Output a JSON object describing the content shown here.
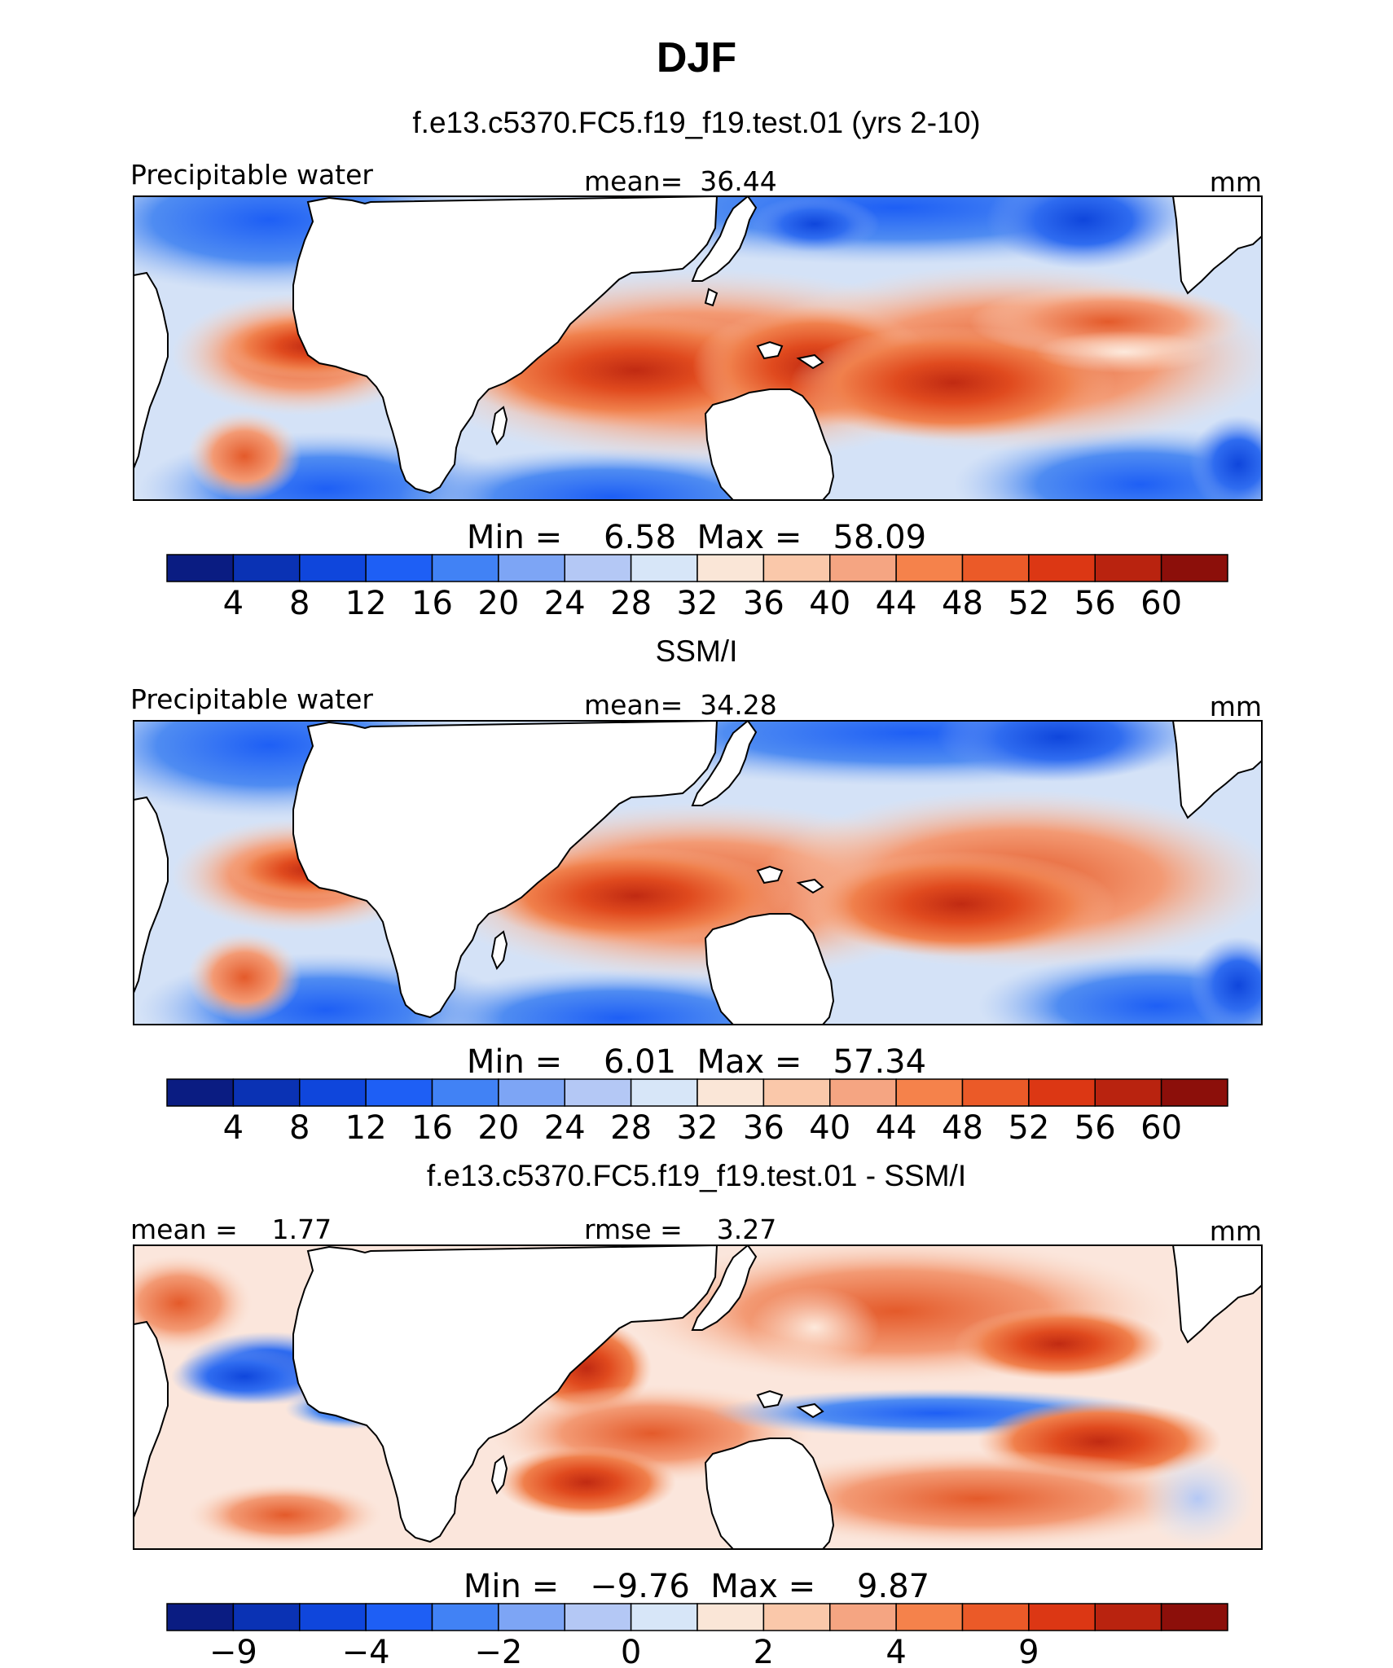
{
  "figure": {
    "title": "DJF"
  },
  "panels": [
    {
      "title": "f.e13.c5370.FC5.f19_f19.test.01 (yrs 2-10)",
      "left_label": "Precipitable water",
      "center_label": "mean=  36.44",
      "right_label": "mm",
      "minmax_label": "Min =    6.58  Max =   58.09",
      "colorbar": {
        "colors": [
          "#0a1c82",
          "#0a32b4",
          "#0f46dc",
          "#1e5ff5",
          "#4182f5",
          "#7da5f5",
          "#b4c8f5",
          "#d7e6f8",
          "#fae6d7",
          "#fac8aa",
          "#f5a582",
          "#f5824b",
          "#eb5a28",
          "#dc3714",
          "#b9230f",
          "#8c0f0a"
        ],
        "tick_labels": [
          "4",
          "8",
          "12",
          "16",
          "20",
          "24",
          "28",
          "32",
          "36",
          "40",
          "44",
          "48",
          "52",
          "56",
          "60"
        ]
      }
    },
    {
      "title": "SSM/I",
      "left_label": "Precipitable water",
      "center_label": "mean=  34.28",
      "right_label": "mm",
      "minmax_label": "Min =    6.01  Max =   57.34",
      "colorbar": {
        "colors": [
          "#0a1c82",
          "#0a32b4",
          "#0f46dc",
          "#1e5ff5",
          "#4182f5",
          "#7da5f5",
          "#b4c8f5",
          "#d7e6f8",
          "#fae6d7",
          "#fac8aa",
          "#f5a582",
          "#f5824b",
          "#eb5a28",
          "#dc3714",
          "#b9230f",
          "#8c0f0a"
        ],
        "tick_labels": [
          "4",
          "8",
          "12",
          "16",
          "20",
          "24",
          "28",
          "32",
          "36",
          "40",
          "44",
          "48",
          "52",
          "56",
          "60"
        ]
      }
    },
    {
      "title": "f.e13.c5370.FC5.f19_f19.test.01 - SSM/I",
      "left_label": "mean =    1.77",
      "center_label": "rmse =    3.27",
      "right_label": "mm",
      "minmax_label": "Min =   −9.76  Max =    9.87",
      "colorbar": {
        "colors": [
          "#0a1c82",
          "#0a32b4",
          "#0f46dc",
          "#1e5ff5",
          "#4182f5",
          "#7da5f5",
          "#b4c8f5",
          "#d7e6f8",
          "#fae6d7",
          "#fac8aa",
          "#f5a582",
          "#f5824b",
          "#eb5a28",
          "#dc3714",
          "#b9230f",
          "#8c0f0a"
        ],
        "tick_labels": [
          "−9",
          "",
          "−4",
          "",
          "−2",
          "",
          "0",
          "",
          "2",
          "",
          "4",
          "",
          "9",
          "",
          ""
        ]
      }
    }
  ],
  "chart_data": [
    {
      "type": "heatmap",
      "title": "f.e13.c5370.FC5.f19_f19.test.01 (yrs 2-10)",
      "variable": "Precipitable water",
      "units": "mm",
      "mean": 36.44,
      "min": 6.58,
      "max": 58.09,
      "levels": [
        4,
        8,
        12,
        16,
        20,
        24,
        28,
        32,
        36,
        40,
        44,
        48,
        52,
        56,
        60
      ]
    },
    {
      "type": "heatmap",
      "title": "SSM/I",
      "variable": "Precipitable water",
      "units": "mm",
      "mean": 34.28,
      "min": 6.01,
      "max": 57.34,
      "levels": [
        4,
        8,
        12,
        16,
        20,
        24,
        28,
        32,
        36,
        40,
        44,
        48,
        52,
        56,
        60
      ]
    },
    {
      "type": "heatmap",
      "title": "f.e13.c5370.FC5.f19_f19.test.01 - SSM/I",
      "units": "mm",
      "mean": 1.77,
      "rmse": 3.27,
      "min": -9.76,
      "max": 9.87,
      "tick_labels": [
        "−9",
        "−4",
        "−2",
        "0",
        "2",
        "4",
        "9"
      ]
    }
  ]
}
